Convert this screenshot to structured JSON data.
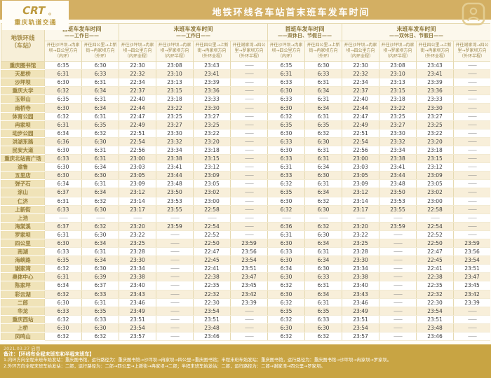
{
  "header": {
    "title": "地铁环线各车站首末班车发车时间",
    "logo": {
      "brand": "CRT",
      "name": "重庆轨道交通"
    }
  },
  "table": {
    "station_header": {
      "line1": "地铁环线",
      "line2": "（车站）"
    },
    "groups": [
      {
        "title": "首班车发车时间",
        "subtitle": "——工作日——",
        "span": 2
      },
      {
        "title": "末班车发车时间",
        "subtitle": "——工作日——",
        "span": 4
      },
      {
        "title": "首班车发车时间",
        "subtitle": "——双休日、节假日——",
        "span": 2
      },
      {
        "title": "末班车发车时间",
        "subtitle": "——双休日、节假日——",
        "span": 4
      }
    ],
    "columns": [
      {
        "route": "开往沙坪坝→冉家坝→四公里方向",
        "scope": "（内环）"
      },
      {
        "route": "开往四公里→上新街→冉家坝方向",
        "scope": "（外环）"
      },
      {
        "route": "开往沙坪坝→冉家坝→四公里方向",
        "scope": "（内环全程）"
      },
      {
        "route": "开往沙坪坝→冉家坝→罗家坝方向",
        "scope": "（内环半程）"
      },
      {
        "route": "开往四公里→上新街→冉家坝方向",
        "scope": "（外环全程）"
      },
      {
        "route": "开往谢家湾→四公里→罗家坝方向",
        "scope": "（外环半程）"
      },
      {
        "route": "开往沙坪坝→冉家坝→四公里方向",
        "scope": "（内环）"
      },
      {
        "route": "开往四公里→上新街→冉家坝方向",
        "scope": "（外环）"
      },
      {
        "route": "开往沙坪坝→冉家坝→四公里方向",
        "scope": "（内环全程）"
      },
      {
        "route": "开往沙坪坝→冉家坝→罗家坝方向",
        "scope": "（内环半程）"
      },
      {
        "route": "开往四公里→上新街→冉家坝方向",
        "scope": "（外环全程）"
      },
      {
        "route": "开往谢家湾→四公里→罗家坝方向",
        "scope": "（外环半程）"
      }
    ],
    "rows": [
      {
        "station": "重庆图书馆",
        "times": [
          "6:35",
          "6:30",
          "22:30",
          "23:08",
          "23:43",
          "——",
          "6:35",
          "6:30",
          "22:30",
          "23:08",
          "23:43",
          "——"
        ]
      },
      {
        "station": "天星桥",
        "times": [
          "6:31",
          "6:33",
          "22:32",
          "23:10",
          "23:41",
          "——",
          "6:31",
          "6:33",
          "22:32",
          "23:10",
          "23:41",
          "——"
        ]
      },
      {
        "station": "沙坪坝",
        "times": [
          "6:30",
          "6:31",
          "22:34",
          "23:13",
          "23:39",
          "——",
          "6:33",
          "6:31",
          "22:34",
          "23:13",
          "23:39",
          "——"
        ]
      },
      {
        "station": "重庆大学",
        "times": [
          "6:32",
          "6:34",
          "22:37",
          "23:15",
          "23:36",
          "——",
          "6:30",
          "6:34",
          "22:37",
          "23:15",
          "23:36",
          "——"
        ]
      },
      {
        "station": "玉带山",
        "times": [
          "6:35",
          "6:31",
          "22:40",
          "23:18",
          "23:33",
          "——",
          "6:33",
          "6:31",
          "22:40",
          "23:18",
          "23:33",
          "——"
        ]
      },
      {
        "station": "南桥寺",
        "times": [
          "6:30",
          "6:34",
          "22:44",
          "23:22",
          "23:30",
          "——",
          "6:30",
          "6:34",
          "22:44",
          "23:22",
          "23:30",
          "——"
        ]
      },
      {
        "station": "体育公园",
        "times": [
          "6:32",
          "6:31",
          "22:47",
          "23:25",
          "23:27",
          "——",
          "6:32",
          "6:31",
          "22:47",
          "23:25",
          "23:27",
          "——"
        ]
      },
      {
        "station": "冉家坝",
        "times": [
          "6:31",
          "6:35",
          "22:49",
          "23:27",
          "23:25",
          "——",
          "6:35",
          "6:35",
          "22:49",
          "23:27",
          "23:25",
          "——"
        ]
      },
      {
        "station": "动步公园",
        "times": [
          "6:34",
          "6:32",
          "22:51",
          "23:30",
          "23:22",
          "——",
          "6:30",
          "6:32",
          "22:51",
          "23:30",
          "23:22",
          "——"
        ]
      },
      {
        "station": "洪湖东路",
        "times": [
          "6:36",
          "6:30",
          "22:54",
          "23:32",
          "23:20",
          "——",
          "6:33",
          "6:30",
          "22:54",
          "23:32",
          "23:20",
          "——"
        ]
      },
      {
        "station": "民安大道",
        "times": [
          "6:30",
          "6:31",
          "22:56",
          "23:34",
          "23:18",
          "——",
          "6:30",
          "6:31",
          "22:56",
          "23:34",
          "23:18",
          "——"
        ]
      },
      {
        "station": "重庆北站南广场",
        "times": [
          "6:33",
          "6:31",
          "23:00",
          "23:38",
          "23:15",
          "——",
          "6:33",
          "6:31",
          "23:00",
          "23:38",
          "23:15",
          "——"
        ]
      },
      {
        "station": "渝鲁",
        "times": [
          "6:30",
          "6:34",
          "23:03",
          "23:41",
          "23:12",
          "——",
          "6:31",
          "6:34",
          "23:03",
          "23:41",
          "23:12",
          "——"
        ]
      },
      {
        "station": "五里店",
        "times": [
          "6:30",
          "6:30",
          "23:05",
          "23:44",
          "23:09",
          "——",
          "6:33",
          "6:30",
          "23:05",
          "23:44",
          "23:09",
          "——"
        ]
      },
      {
        "station": "弹子石",
        "times": [
          "6:34",
          "6:31",
          "23:09",
          "23:48",
          "23:05",
          "——",
          "6:32",
          "6:31",
          "23:09",
          "23:48",
          "23:05",
          "——"
        ]
      },
      {
        "station": "涂山",
        "times": [
          "6:37",
          "6:34",
          "23:12",
          "23:50",
          "23:02",
          "——",
          "6:35",
          "6:34",
          "23:12",
          "23:50",
          "23:02",
          "——"
        ]
      },
      {
        "station": "仁济",
        "times": [
          "6:31",
          "6:32",
          "23:14",
          "23:53",
          "23:00",
          "——",
          "6:30",
          "6:32",
          "23:14",
          "23:53",
          "23:00",
          "——"
        ]
      },
      {
        "station": "上新街",
        "times": [
          "6:33",
          "6:30",
          "23:17",
          "23:55",
          "22:58",
          "——",
          "6:32",
          "6:30",
          "23:17",
          "23:55",
          "22:58",
          "——"
        ]
      },
      {
        "station": "上浩",
        "times": [
          "——",
          "——",
          "——",
          "——",
          "——",
          "——",
          "——",
          "——",
          "——",
          "——",
          "——",
          "——"
        ]
      },
      {
        "station": "海棠溪",
        "times": [
          "6:37",
          "6:32",
          "23:20",
          "23:59",
          "22:54",
          "——",
          "6:36",
          "6:32",
          "23:20",
          "23:59",
          "22:54",
          "——"
        ]
      },
      {
        "station": "罗家坝",
        "times": [
          "6:31",
          "6:30",
          "23:22",
          "——",
          "22:52",
          "——",
          "6:31",
          "6:30",
          "23:22",
          "——",
          "22:52",
          "——"
        ]
      },
      {
        "station": "四公里",
        "times": [
          "6:30",
          "6:34",
          "23:25",
          "——",
          "22:50",
          "23:59",
          "6:30",
          "6:34",
          "23:25",
          "——",
          "22:50",
          "23:59"
        ]
      },
      {
        "station": "南湖",
        "times": [
          "6:33",
          "6:31",
          "23:28",
          "——",
          "22:47",
          "23:56",
          "6:33",
          "6:31",
          "23:28",
          "——",
          "22:47",
          "23:56"
        ]
      },
      {
        "station": "海峡路",
        "times": [
          "6:35",
          "6:34",
          "23:30",
          "——",
          "22:45",
          "23:54",
          "6:30",
          "6:34",
          "23:30",
          "——",
          "22:45",
          "23:54"
        ]
      },
      {
        "station": "谢家湾",
        "times": [
          "6:32",
          "6:30",
          "23:34",
          "——",
          "22:41",
          "23:51",
          "6:34",
          "6:30",
          "23:34",
          "——",
          "22:41",
          "23:51"
        ]
      },
      {
        "station": "奥体中心",
        "times": [
          "6:31",
          "6:39",
          "23:38",
          "——",
          "22:38",
          "23:47",
          "6:30",
          "6:33",
          "23:38",
          "——",
          "22:38",
          "23:47"
        ]
      },
      {
        "station": "陈家坪",
        "times": [
          "6:34",
          "6:37",
          "23:40",
          "——",
          "22:35",
          "23:45",
          "6:32",
          "6:31",
          "23:40",
          "——",
          "22:35",
          "23:45"
        ]
      },
      {
        "station": "彩云湖",
        "times": [
          "6:32",
          "6:33",
          "23:43",
          "——",
          "22:32",
          "23:42",
          "6:30",
          "6:34",
          "23:43",
          "——",
          "22:32",
          "23:42"
        ]
      },
      {
        "station": "二郎",
        "times": [
          "6:30",
          "6:31",
          "23:46",
          "——",
          "22:30",
          "23:39",
          "6:32",
          "6:31",
          "23:46",
          "——",
          "22:30",
          "23:39"
        ]
      },
      {
        "station": "华龙",
        "times": [
          "6:33",
          "6:35",
          "23:49",
          "——",
          "23:54",
          "——",
          "6:35",
          "6:35",
          "23:49",
          "——",
          "23:54",
          "——"
        ]
      },
      {
        "station": "重庆西站",
        "times": [
          "6:32",
          "6:33",
          "23:51",
          "——",
          "23:51",
          "——",
          "6:32",
          "6:33",
          "23:51",
          "——",
          "23:51",
          "——"
        ]
      },
      {
        "station": "上桥",
        "times": [
          "6:30",
          "6:30",
          "23:54",
          "——",
          "23:48",
          "——",
          "6:30",
          "6:30",
          "23:54",
          "——",
          "23:48",
          "——"
        ]
      },
      {
        "station": "凤鸣山",
        "times": [
          "6:32",
          "6:32",
          "23:57",
          "——",
          "23:46",
          "——",
          "6:32",
          "6:32",
          "23:57",
          "——",
          "23:46",
          "——"
        ]
      }
    ]
  },
  "footer": {
    "date_note": "2021.03.27 启用",
    "note_title": "备注：【环线有全程末班车和半程末班车】",
    "notes": [
      "1.内环方向全程末班车始发站：重庆图书馆，运行路径为：重庆图书馆→沙坪坝→冉家坝→四公里→重庆图书馆；半程末班车始发站：重庆图书馆，运行路径为：重庆图书馆→沙坪坝→冉家坝→罗家坝。",
      "2.外环方向全程末班车始发站：二郎，运行路径为：二郎→四公里→上新街→冉家坝→二郎；半程末班车始发站：二郎，运行路径为：二郎→谢家湾→四公里→罗家坝。"
    ]
  },
  "colors": {
    "band_gold": "#d3af63",
    "footer_gold": "#c8a443",
    "station_cell_bg": "#f0e3b8",
    "stripe_bg": "#f8efda",
    "header_text": "#8d783c",
    "station_text": "#97803e",
    "time_text": "#3e3e3e",
    "logo_gold": "#bd9a3f"
  }
}
